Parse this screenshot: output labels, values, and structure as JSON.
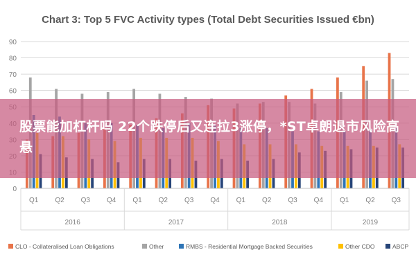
{
  "chart_data": {
    "type": "bar",
    "title": "Chart 3: Top 5 FVC Activity types (Total Debt Securities Issued €bn)",
    "ylim": [
      0,
      90
    ],
    "yticks": [
      0,
      10,
      20,
      30,
      40,
      50,
      60,
      70,
      80,
      90
    ],
    "grid": true,
    "legend_position": "bottom",
    "categories": [
      "Q1",
      "Q2",
      "Q3",
      "Q4",
      "Q1",
      "Q2",
      "Q3",
      "Q4",
      "Q1",
      "Q2",
      "Q3",
      "Q4",
      "Q1",
      "Q2",
      "Q3"
    ],
    "groups": [
      {
        "label": "2016",
        "count": 4
      },
      {
        "label": "2017",
        "count": 4
      },
      {
        "label": "2018",
        "count": 4
      },
      {
        "label": "2019",
        "count": 3
      }
    ],
    "series": [
      {
        "name": "CLO - Collateralised Loan Obligations",
        "color": "#e8744a",
        "values": [
          30,
          32,
          34,
          37,
          39,
          43,
          46,
          51,
          49,
          52,
          57,
          61,
          68,
          75,
          83
        ]
      },
      {
        "name": "Other",
        "color": "#a5a5a5",
        "values": [
          68,
          61,
          58,
          59,
          61,
          58,
          56,
          55,
          52,
          53,
          53,
          52,
          59,
          66,
          67
        ]
      },
      {
        "name": "RMBS - Residential Mortgage Backed Securities",
        "color": "#2e75b6",
        "values": [
          45,
          44,
          40,
          40,
          39,
          37,
          40,
          39,
          37,
          37,
          35,
          35,
          35,
          36,
          37
        ]
      },
      {
        "name": "Other CDO",
        "color": "#ffc000",
        "values": [
          34,
          32,
          30,
          29,
          31,
          31,
          31,
          29,
          27,
          27,
          27,
          26,
          26,
          26,
          27
        ]
      },
      {
        "name": "ABCP",
        "color": "#264478",
        "values": [
          21,
          19,
          18,
          16,
          18,
          18,
          17,
          18,
          17,
          18,
          22,
          23,
          24,
          25,
          25
        ]
      }
    ]
  },
  "overlay": {
    "text": "股票能加杠杆吗 22个跌停后又连拉3涨停，*ST卓朗退市风险高悬"
  }
}
